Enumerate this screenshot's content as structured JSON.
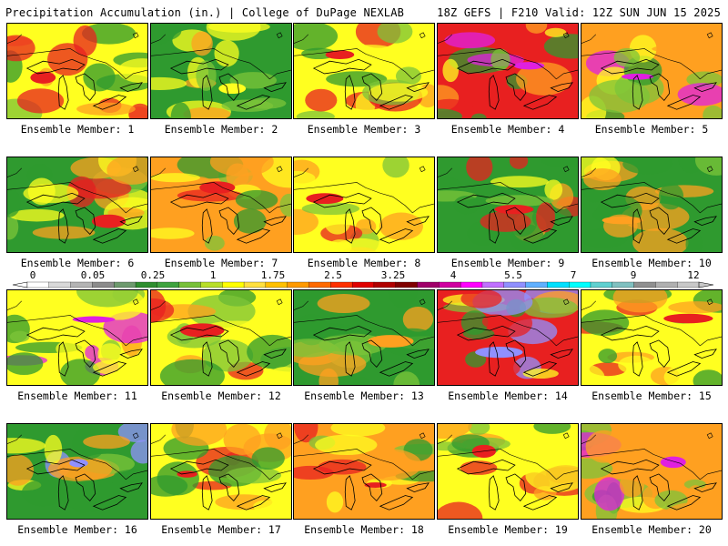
{
  "header": {
    "left": "Precipitation Accumulation (in.) | College of DuPage NEXLAB",
    "right": "18Z GEFS | F210 Valid: 12Z SUN JUN 15 2025"
  },
  "panels": [
    {
      "label": "Ensemble Member: 1",
      "dominant": "yellow",
      "highlight": "red"
    },
    {
      "label": "Ensemble Member: 2",
      "dominant": "green",
      "highlight": "yellow"
    },
    {
      "label": "Ensemble Member: 3",
      "dominant": "yellow",
      "highlight": "red"
    },
    {
      "label": "Ensemble Member: 4",
      "dominant": "red",
      "highlight": "magenta"
    },
    {
      "label": "Ensemble Member: 5",
      "dominant": "orange",
      "highlight": "magenta"
    },
    {
      "label": "Ensemble Member: 6",
      "dominant": "green",
      "highlight": "red"
    },
    {
      "label": "Ensemble Member: 7",
      "dominant": "orange",
      "highlight": "red"
    },
    {
      "label": "Ensemble Member: 8",
      "dominant": "yellow",
      "highlight": "red"
    },
    {
      "label": "Ensemble Member: 9",
      "dominant": "green",
      "highlight": "red"
    },
    {
      "label": "Ensemble Member: 10",
      "dominant": "green",
      "highlight": "orange"
    },
    {
      "label": "Ensemble Member: 11",
      "dominant": "yellow",
      "highlight": "magenta"
    },
    {
      "label": "Ensemble Member: 12",
      "dominant": "yellow",
      "highlight": "red"
    },
    {
      "label": "Ensemble Member: 13",
      "dominant": "green",
      "highlight": "orange"
    },
    {
      "label": "Ensemble Member: 14",
      "dominant": "red",
      "highlight": "violet"
    },
    {
      "label": "Ensemble Member: 15",
      "dominant": "yellow",
      "highlight": "red"
    },
    {
      "label": "Ensemble Member: 16",
      "dominant": "green",
      "highlight": "violet"
    },
    {
      "label": "Ensemble Member: 17",
      "dominant": "yellow",
      "highlight": "red"
    },
    {
      "label": "Ensemble Member: 18",
      "dominant": "orange",
      "highlight": "red"
    },
    {
      "label": "Ensemble Member: 19",
      "dominant": "yellow",
      "highlight": "red"
    },
    {
      "label": "Ensemble Member: 20",
      "dominant": "orange",
      "highlight": "magenta"
    }
  ],
  "colorbar": {
    "tick_labels": [
      "0",
      "0.05",
      "0.25",
      "1",
      "1.75",
      "2.5",
      "3.25",
      "4",
      "5.5",
      "7",
      "9",
      "12"
    ],
    "colors": [
      "#ffffff",
      "#d9d9d9",
      "#b4b4b4",
      "#8c8c8c",
      "#6e9a6e",
      "#2f8f2f",
      "#3fa33f",
      "#78c03a",
      "#b8de2a",
      "#ffff00",
      "#ffe040",
      "#ffc000",
      "#ff9a00",
      "#ff6a00",
      "#ff3000",
      "#e00000",
      "#b00000",
      "#800000",
      "#a0006a",
      "#d000a0",
      "#ff00ff",
      "#c070ff",
      "#9090ff",
      "#60b0ff",
      "#00e0ff",
      "#00ffff",
      "#60d0d0",
      "#80c0c0",
      "#909090",
      "#b0b0b0",
      "#c8c8c8"
    ]
  },
  "palette": {
    "green": "#2f9a2f",
    "lightgreen": "#7cc43a",
    "yellow": "#ffff20",
    "orange": "#ffa020",
    "red": "#e82020",
    "magenta": "#e020e0",
    "violet": "#9090ff"
  }
}
